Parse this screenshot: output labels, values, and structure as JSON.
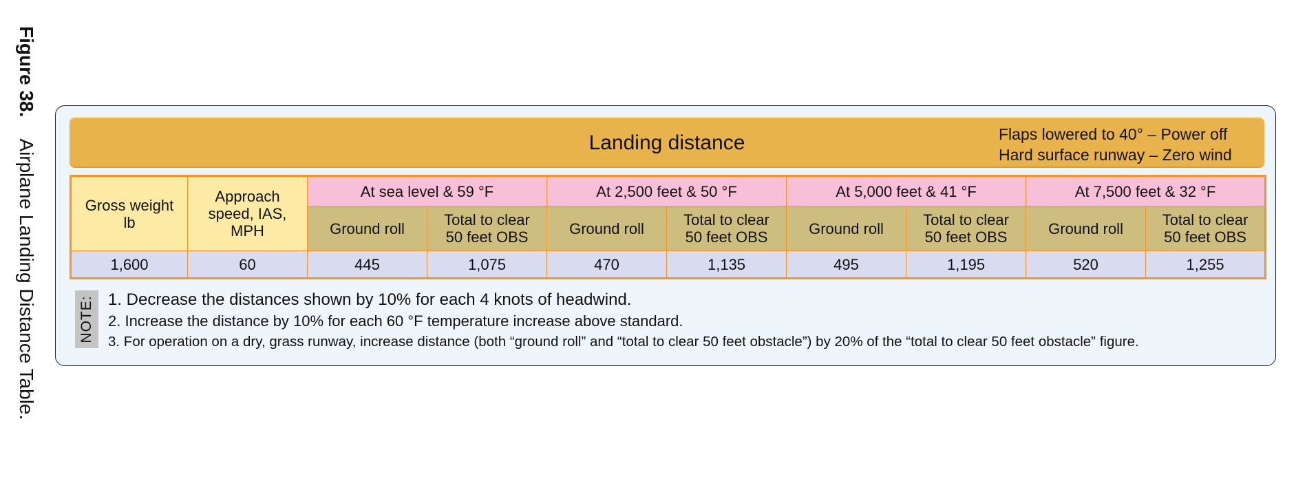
{
  "caption": {
    "number": "Figure 38.",
    "title": "Airplane Landing Distance Table."
  },
  "header": {
    "title": "Landing distance",
    "conditions": [
      "Flaps lowered to 40° – Power off",
      "Hard surface runway – Zero wind"
    ]
  },
  "table": {
    "col_gross_weight": "Gross weight lb",
    "col_approach_speed": "Approach speed, IAS, MPH",
    "altitudes": [
      "At sea level & 59 °F",
      "At 2,500 feet & 50 °F",
      "At 5,000 feet & 41 °F",
      "At 7,500 feet & 32 °F"
    ],
    "sub_ground_roll": "Ground roll",
    "sub_total_clear": "Total to clear 50 feet OBS",
    "row": {
      "gross_weight": "1,600",
      "approach_speed": "60",
      "values": [
        "445",
        "1,075",
        "470",
        "1,135",
        "495",
        "1,195",
        "520",
        "1,255"
      ]
    }
  },
  "notes": {
    "label": "NOTE:",
    "items": [
      "1. Decrease the distances shown by 10% for each 4 knots of headwind.",
      "2. Increase the distance by 10% for each 60 °F temperature increase above standard.",
      "3. For operation on a dry, grass runway, increase distance (both “ground roll” and “total to clear 50 feet obstacle”) by 20% of the “total to clear 50 feet obstacle” figure."
    ]
  },
  "colors": {
    "title_bar": "#e8b34a",
    "border": "#f0962a",
    "header_fixed": "#fdeba5",
    "header_altitude": "#f7c0d8",
    "header_sub": "#cdbd7f",
    "data_row": "#d9dcf0",
    "panel_bg": "#eef5fb"
  }
}
